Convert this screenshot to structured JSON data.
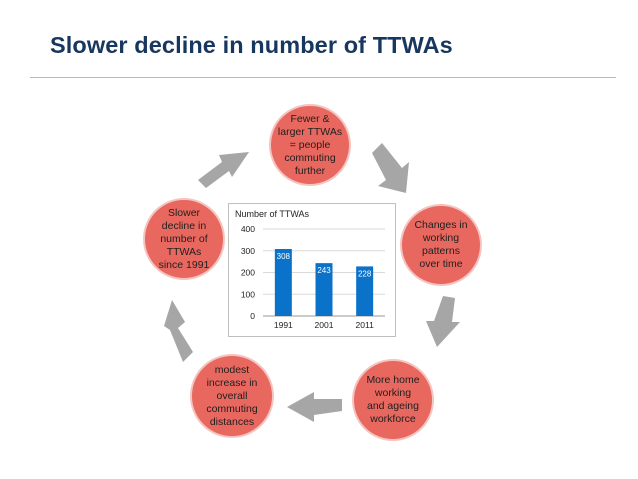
{
  "slide": {
    "title": "Slower decline in number of TTWAs"
  },
  "cycle": {
    "nodes": [
      {
        "id": "top",
        "text": "Fewer  &\nlarger TTWAs\n= people\ncommuting\nfurther"
      },
      {
        "id": "right",
        "text": "Changes in\nworking\npatterns\nover time"
      },
      {
        "id": "bottom-right",
        "text": "More home\nworking\nand ageing\nworkforce"
      },
      {
        "id": "bottom-left",
        "text": "modest\nincrease in\noverall\ncommuting\ndistances"
      },
      {
        "id": "left",
        "text": "Slower\ndecline in\nnumber of\nTTWAs\nsince 1991"
      }
    ],
    "colors": {
      "node_fill": "#e8685f",
      "node_border": "#f4c4c0",
      "arrow": "#a6a6a6",
      "bar": "#0b72c9",
      "grid": "#d9d9d9"
    }
  },
  "chart_data": {
    "type": "bar",
    "title": "Number of TTWAs",
    "categories": [
      "1991",
      "2001",
      "2011"
    ],
    "values": [
      308,
      243,
      228
    ],
    "data_labels": [
      "308",
      "243",
      "228"
    ],
    "yticks": [
      "0",
      "100",
      "200",
      "300",
      "400"
    ],
    "ylim": [
      0,
      400
    ],
    "xlabel": "",
    "ylabel": "",
    "grid": true
  }
}
